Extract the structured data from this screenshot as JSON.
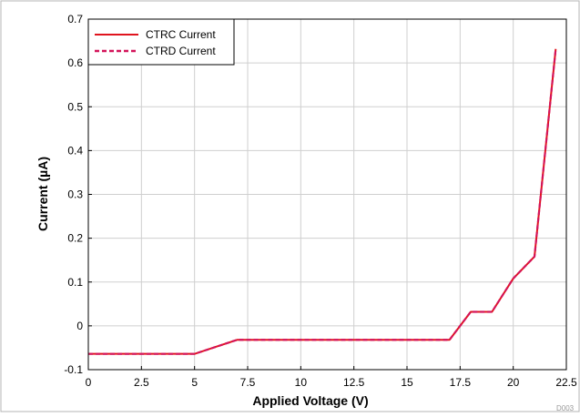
{
  "chart_data": {
    "type": "line",
    "title": "",
    "xlabel": "Applied Voltage (V)",
    "ylabel": "Current (µA)",
    "xlim": [
      0,
      22.5
    ],
    "ylim": [
      -0.1,
      0.7
    ],
    "xticks": [
      0,
      2.5,
      5,
      7.5,
      10,
      12.5,
      15,
      17.5,
      20,
      22.5
    ],
    "xtick_labels": [
      "0",
      "2.5",
      "5",
      "7.5",
      "10",
      "12.5",
      "15",
      "17.5",
      "20",
      "22.5"
    ],
    "yticks": [
      -0.1,
      0,
      0.1,
      0.2,
      0.3,
      0.4,
      0.5,
      0.6,
      0.7
    ],
    "ytick_labels": [
      "-0.1",
      "0",
      "0.1",
      "0.2",
      "0.3",
      "0.4",
      "0.5",
      "0.6",
      "0.7"
    ],
    "grid": true,
    "legend_position": "top-left",
    "series": [
      {
        "name": "CTRC Current",
        "style": "solid",
        "color": "#e0141e",
        "x": [
          0,
          1,
          2,
          3,
          4,
          5,
          6,
          7,
          8,
          9,
          10,
          11,
          12,
          13,
          14,
          15,
          16,
          17,
          18,
          19,
          20,
          21,
          22
        ],
        "y": [
          -0.064,
          -0.064,
          -0.064,
          -0.064,
          -0.064,
          -0.064,
          -0.048,
          -0.032,
          -0.032,
          -0.032,
          -0.032,
          -0.032,
          -0.032,
          -0.032,
          -0.032,
          -0.032,
          -0.032,
          -0.032,
          0.032,
          0.032,
          0.108,
          0.158,
          0.632
        ]
      },
      {
        "name": "CTRD Current",
        "style": "dashed",
        "color": "#d4145a",
        "x": [
          0,
          1,
          2,
          3,
          4,
          5,
          6,
          7,
          8,
          9,
          10,
          11,
          12,
          13,
          14,
          15,
          16,
          17,
          18,
          19,
          20,
          21,
          22
        ],
        "y": [
          -0.064,
          -0.064,
          -0.064,
          -0.064,
          -0.064,
          -0.064,
          -0.048,
          -0.032,
          -0.032,
          -0.032,
          -0.032,
          -0.032,
          -0.032,
          -0.032,
          -0.032,
          -0.032,
          -0.032,
          -0.032,
          0.032,
          0.032,
          0.108,
          0.158,
          0.632
        ]
      }
    ],
    "figure_code": "D003"
  }
}
